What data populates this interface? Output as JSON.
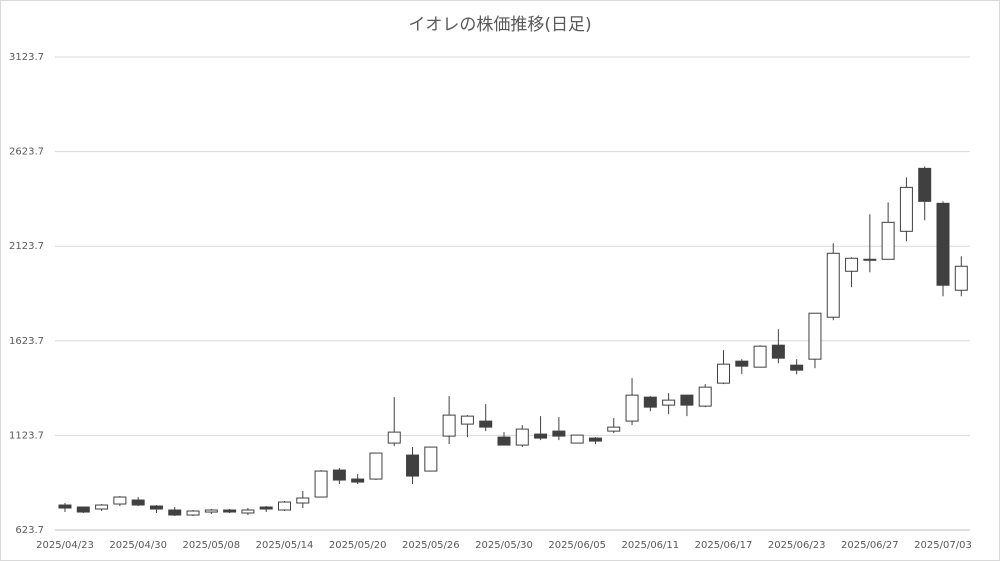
{
  "chart_data": {
    "type": "candlestick",
    "title": "イオレの株価推移(日足)",
    "categories": [
      "2025/04/23",
      null,
      null,
      null,
      "2025/04/30",
      null,
      null,
      null,
      "2025/05/08",
      null,
      null,
      null,
      "2025/05/14",
      null,
      null,
      null,
      "2025/05/20",
      null,
      null,
      null,
      "2025/05/26",
      null,
      null,
      null,
      "2025/05/30",
      null,
      null,
      null,
      "2025/06/05",
      null,
      null,
      null,
      "2025/06/11",
      null,
      null,
      null,
      "2025/06/17",
      null,
      null,
      null,
      "2025/06/23",
      null,
      null,
      null,
      "2025/06/27",
      null,
      null,
      null,
      "2025/07/03",
      null
    ],
    "open": [
      755.7,
      745.1,
      734.6,
      761,
      782.1,
      750.4,
      729.3,
      702.9,
      718.7,
      729.3,
      713.5,
      745.1,
      729.3,
      766.3,
      797.9,
      940.5,
      893,
      893,
      1083.1,
      1019.7,
      935.2,
      1120,
      1183.4,
      1199.2,
      1114.7,
      1072.5,
      1130.6,
      1146.4,
      1083.1,
      1109.5,
      1146.4,
      1199.2,
      1325.9,
      1283.7,
      1336.5,
      1278.4,
      1399.9,
      1516,
      1484.3,
      1600.5,
      1494.9,
      1526.6,
      1748.3,
      1991.2,
      2054.6,
      2054.6,
      2202.4,
      2535.1,
      2350.3,
      1890.9
    ],
    "high": [
      766.3,
      745.1,
      761,
      803.2,
      797.9,
      755.7,
      745.1,
      729.3,
      734.6,
      734.6,
      739.9,
      750.4,
      776.8,
      829.6,
      940.5,
      951.1,
      919.4,
      1030.3,
      1325.9,
      1061.9,
      1061.9,
      1331.2,
      1230.9,
      1289,
      1141.1,
      1178.1,
      1225.6,
      1220.3,
      1125.3,
      1114.7,
      1215.1,
      1426.3,
      1331.2,
      1347.1,
      1336.5,
      1394.6,
      1574.1,
      1526.6,
      1600.5,
      1685,
      1526.6,
      1769.5,
      2139.1,
      2065.1,
      2292.2,
      2355.5,
      2487.5,
      2545.6,
      2360.8,
      2070.4
    ],
    "low": [
      718.7,
      713.5,
      724,
      750.4,
      750.4,
      713.5,
      697.6,
      697.6,
      708.2,
      713.5,
      702.9,
      718.7,
      724,
      739.9,
      797.9,
      866.6,
      866.6,
      887.7,
      1067.2,
      866.6,
      935.2,
      1077.8,
      1114.7,
      1146.4,
      1072.5,
      1061.9,
      1098.9,
      1098.9,
      1083.1,
      1077.8,
      1135.9,
      1178.1,
      1252,
      1236.2,
      1225.6,
      1273.1,
      1394.6,
      1447.4,
      1484.3,
      1505.5,
      1447.4,
      1479.1,
      1732.5,
      1906.7,
      1985.9,
      2054.6,
      2149.6,
      2260.5,
      1859.2,
      1859.2
    ],
    "close": [
      739.9,
      718.7,
      755.7,
      797.9,
      755.7,
      734.6,
      702.9,
      724,
      729.3,
      718.7,
      729.3,
      734.6,
      771.5,
      792.7,
      935.2,
      887.7,
      877.1,
      1030.3,
      1141.1,
      908.8,
      1061.9,
      1230.9,
      1225.6,
      1167.5,
      1072.5,
      1157,
      1109.5,
      1120,
      1125.3,
      1093.6,
      1167.5,
      1336.5,
      1273.1,
      1310.1,
      1283.7,
      1378.7,
      1500.2,
      1489.6,
      1595.2,
      1531.9,
      1468.5,
      1769.5,
      2086.3,
      2059.9,
      2049.3,
      2249.9,
      2434.7,
      2360.8,
      1917.3,
      2017.6
    ],
    "up_color": "#ffffff",
    "down_color": "#404040",
    "ylim": [
      623.7,
      3123.7
    ],
    "yticks": [
      623.7,
      1123.7,
      1623.7,
      2123.7,
      2623.7,
      3123.7
    ],
    "grid": true
  }
}
